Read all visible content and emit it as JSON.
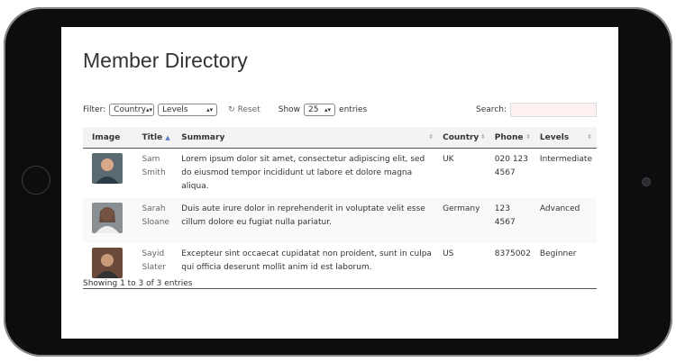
{
  "page": {
    "title": "Member Directory"
  },
  "filters": {
    "label": "Filter:",
    "country": "Country",
    "levels": "Levels",
    "reset": "Reset",
    "show": "Show",
    "page_size": "25",
    "entries": "entries",
    "search_label": "Search:",
    "search_value": ""
  },
  "table": {
    "columns": [
      "Image",
      "Title",
      "Summary",
      "Country",
      "Phone",
      "Levels"
    ],
    "sorted_column": "Title",
    "rows": [
      {
        "title": "Sam Smith",
        "summary": "Lorem ipsum dolor sit amet, consectetur adipiscing elit, sed do eiusmod tempor incididunt ut labore et dolore magna aliqua.",
        "country": "UK",
        "phone": "020 123 4567",
        "level": "Intermediate"
      },
      {
        "title": "Sarah Sloane",
        "summary": "Duis aute irure dolor in reprehenderit in voluptate velit esse cillum dolore eu fugiat nulla pariatur.",
        "country": "Germany",
        "phone": "123 4567",
        "level": "Advanced"
      },
      {
        "title": "Sayid Slater",
        "summary": "Excepteur sint occaecat cupidatat non proident, sunt in culpa qui officia deserunt mollit anim id est laborum.",
        "country": "US",
        "phone": "8375002",
        "level": "Beginner"
      }
    ]
  },
  "footer": {
    "info": "Showing 1 to 3 of 3 entries"
  },
  "colors": {
    "sort_active": "#5b7fc4",
    "search_bg": "#fdf0f0"
  }
}
